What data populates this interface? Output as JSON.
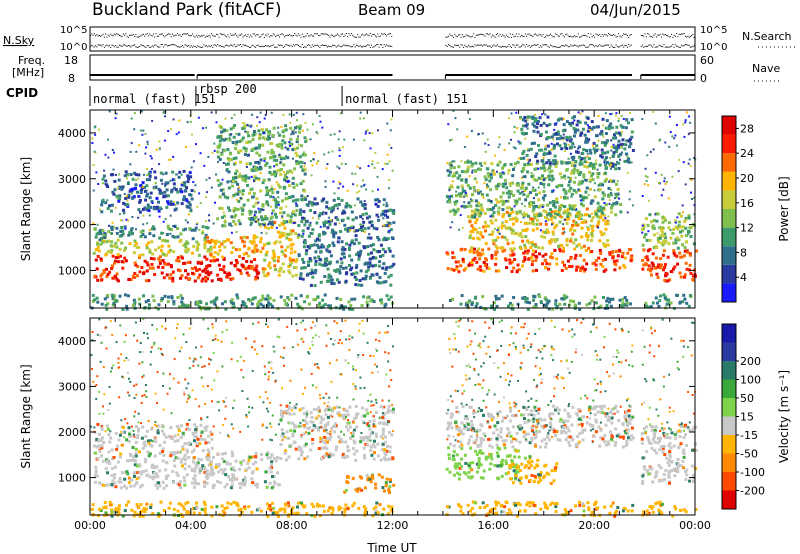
{
  "header": {
    "title": "Buckland Park (fitACF)",
    "beam": "Beam 09",
    "date": "04/Jun/2015"
  },
  "noise_panel": {
    "left_label": "N.Sky",
    "right_label": "N.Search",
    "left_ticks": [
      "10^5",
      "10^0"
    ],
    "right_ticks": [
      "10^5",
      "10^0"
    ]
  },
  "freq_panel": {
    "label_line1": "Freq.",
    "label_line2": "[MHz]",
    "left_ticks": [
      "18",
      "8"
    ],
    "right_ticks": [
      "60",
      "0"
    ],
    "right_label": "Nave"
  },
  "cpid_panel": {
    "label": "CPID",
    "modes": [
      {
        "name": "normal (fast)",
        "id": "151",
        "start_hr": 0,
        "end_hr": 4.2
      },
      {
        "name": "rbsp",
        "id": "200",
        "start_hr": 4.2,
        "end_hr": 10.0
      },
      {
        "name": "normal (fast)",
        "id": "151",
        "start_hr": 10.0,
        "end_hr": 24
      }
    ]
  },
  "chart_data": [
    {
      "type": "heatmap",
      "name": "power",
      "ylabel": "Slant Range [km]",
      "colorbar_label": "Power [dB]",
      "colorbar_ticks": [
        4,
        8,
        12,
        16,
        20,
        24,
        28
      ],
      "colorbar_range": [
        0,
        30
      ],
      "colorbar_colors": [
        "#1a1aff",
        "#2a3aa0",
        "#2f6e8c",
        "#3e9a6a",
        "#7fbf4d",
        "#c8cc3a",
        "#ffb400",
        "#ff6a00",
        "#ff1a00",
        "#e00000"
      ],
      "yticks": [
        1000,
        2000,
        3000,
        4000
      ],
      "ylim": [
        180,
        4500
      ],
      "xlim_hr": [
        0,
        24
      ],
      "data_gaps_hr": [
        [
          12.0,
          14.1
        ],
        [
          21.5,
          21.85
        ]
      ],
      "bands": [
        {
          "t0": 0.1,
          "t1": 4.8,
          "r0": 800,
          "r1": 1350,
          "power_db": 26
        },
        {
          "t0": 0.1,
          "t1": 4.8,
          "r0": 1350,
          "r1": 1700,
          "power_db": 16
        },
        {
          "t0": 0.1,
          "t1": 4.8,
          "r0": 1700,
          "r1": 2000,
          "power_db": 10
        },
        {
          "t0": 0.4,
          "t1": 4.0,
          "r0": 2300,
          "r1": 3200,
          "power_db": 6
        },
        {
          "t0": 4.4,
          "t1": 6.8,
          "r0": 800,
          "r1": 1300,
          "power_db": 27
        },
        {
          "t0": 4.4,
          "t1": 6.8,
          "r0": 1300,
          "r1": 1800,
          "power_db": 20
        },
        {
          "t0": 6.8,
          "t1": 8.2,
          "r0": 900,
          "r1": 2100,
          "power_db": 18
        },
        {
          "t0": 5.0,
          "t1": 8.5,
          "r0": 2000,
          "r1": 4200,
          "power_db": 12
        },
        {
          "t0": 8.2,
          "t1": 12.0,
          "r0": 700,
          "r1": 2600,
          "power_db": 8
        },
        {
          "t0": 14.1,
          "t1": 21.5,
          "r0": 1000,
          "r1": 1500,
          "power_db": 24
        },
        {
          "t0": 15.0,
          "t1": 20.5,
          "r0": 1500,
          "r1": 2400,
          "power_db": 18
        },
        {
          "t0": 14.1,
          "t1": 21.0,
          "r0": 2200,
          "r1": 3400,
          "power_db": 12
        },
        {
          "t0": 17.0,
          "t1": 21.5,
          "r0": 3300,
          "r1": 4400,
          "power_db": 8
        },
        {
          "t0": 21.85,
          "t1": 24.0,
          "r0": 800,
          "r1": 1500,
          "power_db": 25
        },
        {
          "t0": 21.85,
          "t1": 24.0,
          "r0": 1500,
          "r1": 2300,
          "power_db": 14
        },
        {
          "t0": 0.0,
          "t1": 24.0,
          "r0": 180,
          "r1": 500,
          "power_db": 10
        }
      ]
    },
    {
      "type": "heatmap",
      "name": "velocity",
      "ylabel": "Slant Range [km]",
      "xlabel": "Time UT",
      "colorbar_label": "Velocity [m s⁻¹]",
      "colorbar_ticks": [
        -200,
        -100,
        -50,
        -15,
        15,
        50,
        100,
        200
      ],
      "colorbar_colors": [
        "#e00000",
        "#ff4a00",
        "#ff8a00",
        "#ffb400",
        "#c8c8c8",
        "#7fd34a",
        "#3aa83a",
        "#2a7a6a",
        "#2a3aa0",
        "#1a1aaa"
      ],
      "yticks": [
        1000,
        2000,
        3000,
        4000
      ],
      "ylim": [
        180,
        4500
      ],
      "xlim_hr": [
        0,
        24
      ],
      "xticks": [
        "00:00",
        "04:00",
        "08:00",
        "12:00",
        "16:00",
        "20:00",
        "00:00"
      ],
      "data_gaps_hr": [
        [
          12.0,
          14.1
        ],
        [
          21.5,
          21.85
        ]
      ],
      "bands": [
        {
          "t0": 0.1,
          "t1": 4.8,
          "r0": 800,
          "r1": 1700,
          "velocity": 0
        },
        {
          "t0": 0.1,
          "t1": 4.8,
          "r0": 1700,
          "r1": 2200,
          "velocity": 0
        },
        {
          "t0": 4.4,
          "t1": 7.5,
          "r0": 800,
          "r1": 1600,
          "velocity": 0
        },
        {
          "t0": 7.5,
          "t1": 12.0,
          "r0": 1400,
          "r1": 2600,
          "velocity": 0
        },
        {
          "t0": 10.0,
          "t1": 12.0,
          "r0": 700,
          "r1": 1100,
          "velocity": -80
        },
        {
          "t0": 14.1,
          "t1": 17.0,
          "r0": 1000,
          "r1": 1700,
          "velocity": 40
        },
        {
          "t0": 16.5,
          "t1": 18.5,
          "r0": 900,
          "r1": 1500,
          "velocity": -40
        },
        {
          "t0": 14.1,
          "t1": 21.5,
          "r0": 1700,
          "r1": 2600,
          "velocity": 0
        },
        {
          "t0": 21.85,
          "t1": 24.0,
          "r0": 900,
          "r1": 2200,
          "velocity": 0
        },
        {
          "t0": 0.0,
          "t1": 24.0,
          "r0": 180,
          "r1": 500,
          "velocity": -30
        }
      ]
    }
  ]
}
